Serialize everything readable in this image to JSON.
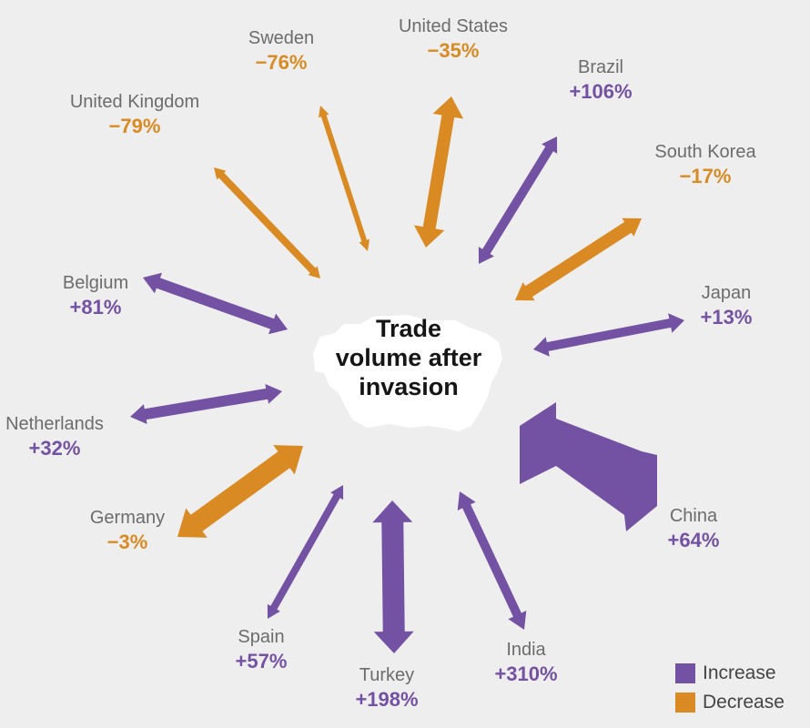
{
  "chart_data": {
    "type": "radial-arrows",
    "title": "Trade volume after invasion",
    "legend": [
      {
        "label": "Increase",
        "color": "#7452a3"
      },
      {
        "label": "Decrease",
        "color": "#d98a22"
      }
    ],
    "legend_placement": "bottom-right",
    "countries": [
      {
        "name": "United States",
        "change": "−35%",
        "value": -35,
        "kind": "decrease"
      },
      {
        "name": "Brazil",
        "change": "+106%",
        "value": 106,
        "kind": "increase"
      },
      {
        "name": "South Korea",
        "change": "−17%",
        "value": -17,
        "kind": "decrease"
      },
      {
        "name": "Japan",
        "change": "+13%",
        "value": 13,
        "kind": "increase"
      },
      {
        "name": "China",
        "change": "+64%",
        "value": 64,
        "kind": "increase"
      },
      {
        "name": "India",
        "change": "+310%",
        "value": 310,
        "kind": "increase"
      },
      {
        "name": "Turkey",
        "change": "+198%",
        "value": 198,
        "kind": "increase"
      },
      {
        "name": "Spain",
        "change": "+57%",
        "value": 57,
        "kind": "increase"
      },
      {
        "name": "Germany",
        "change": "−3%",
        "value": -3,
        "kind": "decrease"
      },
      {
        "name": "Netherlands",
        "change": "+32%",
        "value": 32,
        "kind": "increase"
      },
      {
        "name": "Belgium",
        "change": "+81%",
        "value": 81,
        "kind": "increase"
      },
      {
        "name": "United Kingdom",
        "change": "−79%",
        "value": -79,
        "kind": "decrease"
      },
      {
        "name": "Sweden",
        "change": "−76%",
        "value": -76,
        "kind": "decrease"
      }
    ]
  }
}
